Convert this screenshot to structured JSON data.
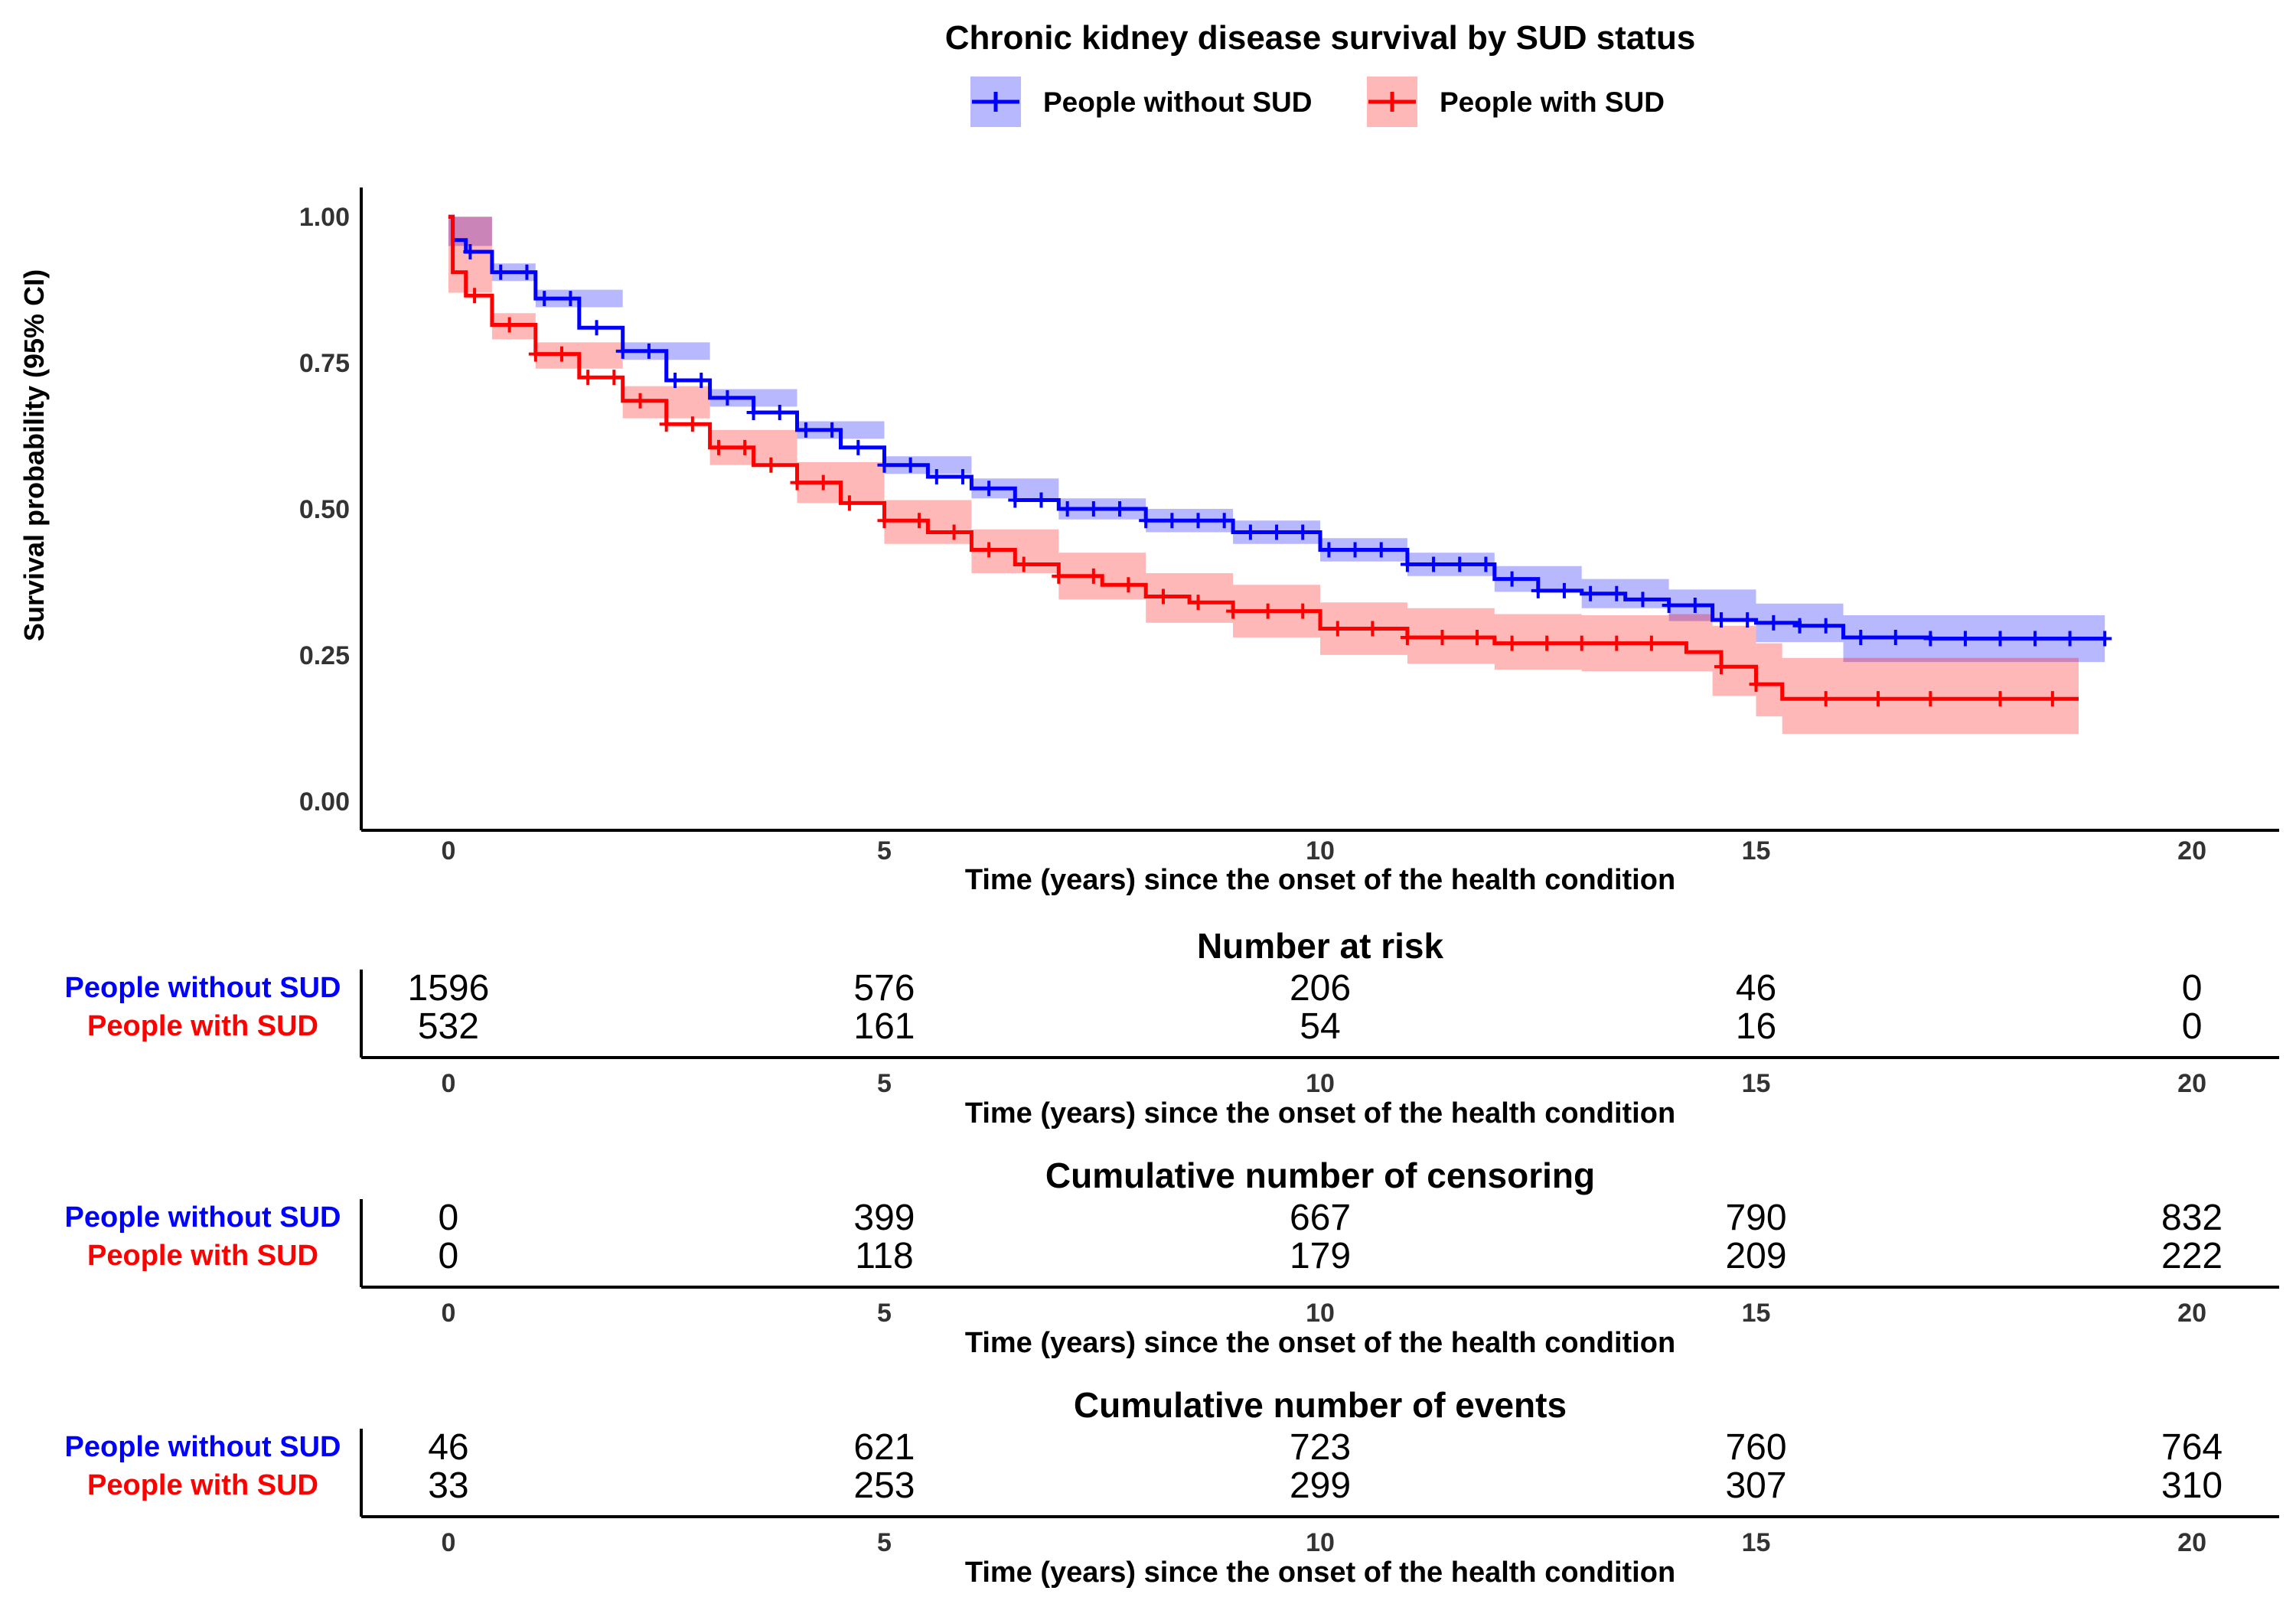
{
  "chart_data": {
    "type": "line",
    "subtype": "kaplan-meier survival curve with risk tables",
    "title": "Chronic kidney disease survival by SUD status",
    "xlabel": "Time (years) since the onset of the health condition",
    "ylabel": "Survival probability (95% CI)",
    "xlim": [
      -1,
      21
    ],
    "ylim": [
      -0.05,
      1.05
    ],
    "xticks": [
      "0",
      "5",
      "10",
      "15",
      "20"
    ],
    "yticks": [
      "0.00",
      "0.25",
      "0.50",
      "0.75",
      "1.00"
    ],
    "legend_position": "top",
    "grid": false,
    "series": [
      {
        "name": "People without SUD",
        "color": "#0000FF",
        "fill": "#0000FF",
        "points": [
          [
            0,
            1.0
          ],
          [
            0.05,
            0.96
          ],
          [
            0.2,
            0.94
          ],
          [
            0.5,
            0.905
          ],
          [
            1,
            0.86
          ],
          [
            1.5,
            0.81
          ],
          [
            2,
            0.77
          ],
          [
            2.5,
            0.72
          ],
          [
            3,
            0.69
          ],
          [
            3.5,
            0.665
          ],
          [
            4,
            0.635
          ],
          [
            4.5,
            0.605
          ],
          [
            5,
            0.575
          ],
          [
            5.5,
            0.555
          ],
          [
            6,
            0.535
          ],
          [
            6.5,
            0.515
          ],
          [
            7,
            0.5
          ],
          [
            8,
            0.48
          ],
          [
            9,
            0.46
          ],
          [
            10,
            0.43
          ],
          [
            11,
            0.405
          ],
          [
            12,
            0.38
          ],
          [
            12.5,
            0.36
          ],
          [
            13,
            0.355
          ],
          [
            13.5,
            0.345
          ],
          [
            14,
            0.335
          ],
          [
            14.5,
            0.31
          ],
          [
            15,
            0.305
          ],
          [
            15.5,
            0.3
          ],
          [
            16,
            0.28
          ],
          [
            17,
            0.278
          ],
          [
            19,
            0.278
          ]
        ],
        "ci_upper": [
          [
            0,
            1.0
          ],
          [
            0.5,
            0.92
          ],
          [
            1,
            0.875
          ],
          [
            2,
            0.785
          ],
          [
            3,
            0.705
          ],
          [
            4,
            0.65
          ],
          [
            5,
            0.59
          ],
          [
            6,
            0.552
          ],
          [
            7,
            0.518
          ],
          [
            8,
            0.5
          ],
          [
            9,
            0.48
          ],
          [
            10,
            0.45
          ],
          [
            11,
            0.425
          ],
          [
            12,
            0.402
          ],
          [
            13,
            0.38
          ],
          [
            14,
            0.362
          ],
          [
            15,
            0.338
          ],
          [
            16,
            0.318
          ],
          [
            17,
            0.318
          ],
          [
            19,
            0.318
          ]
        ],
        "ci_lower": [
          [
            0,
            0.95
          ],
          [
            0.5,
            0.89
          ],
          [
            1,
            0.845
          ],
          [
            2,
            0.755
          ],
          [
            3,
            0.675
          ],
          [
            4,
            0.62
          ],
          [
            5,
            0.56
          ],
          [
            6,
            0.518
          ],
          [
            7,
            0.482
          ],
          [
            8,
            0.46
          ],
          [
            9,
            0.44
          ],
          [
            10,
            0.41
          ],
          [
            11,
            0.385
          ],
          [
            12,
            0.358
          ],
          [
            13,
            0.33
          ],
          [
            14,
            0.308
          ],
          [
            15,
            0.272
          ],
          [
            16,
            0.238
          ],
          [
            17,
            0.238
          ],
          [
            19,
            0.238
          ]
        ],
        "censor_x": [
          0.25,
          0.6,
          0.9,
          1.1,
          1.4,
          1.7,
          2.0,
          2.3,
          2.6,
          2.9,
          3.2,
          3.5,
          3.8,
          4.1,
          4.4,
          4.7,
          5.0,
          5.3,
          5.6,
          5.9,
          6.2,
          6.5,
          6.8,
          7.1,
          7.4,
          7.7,
          8.0,
          8.3,
          8.6,
          8.9,
          9.2,
          9.5,
          9.8,
          10.1,
          10.4,
          10.7,
          11.0,
          11.3,
          11.6,
          11.9,
          12.2,
          12.5,
          12.8,
          13.1,
          13.4,
          13.7,
          14.0,
          14.3,
          14.6,
          14.9,
          15.2,
          15.5,
          15.8,
          16.2,
          16.6,
          17.0,
          17.4,
          17.8,
          18.2,
          18.6,
          19.0
        ],
        "risk": [
          "1596",
          "576",
          "206",
          "46",
          "0"
        ],
        "censoring": [
          "0",
          "399",
          "667",
          "790",
          "832"
        ],
        "events": [
          "46",
          "621",
          "723",
          "760",
          "764"
        ]
      },
      {
        "name": "People with SUD",
        "color": "#FF0000",
        "fill": "#FF0000",
        "points": [
          [
            0,
            1.0
          ],
          [
            0.05,
            0.905
          ],
          [
            0.2,
            0.865
          ],
          [
            0.5,
            0.815
          ],
          [
            1,
            0.765
          ],
          [
            1.5,
            0.725
          ],
          [
            2,
            0.685
          ],
          [
            2.5,
            0.645
          ],
          [
            3,
            0.605
          ],
          [
            3.5,
            0.575
          ],
          [
            4,
            0.545
          ],
          [
            4.5,
            0.51
          ],
          [
            5,
            0.48
          ],
          [
            5.5,
            0.46
          ],
          [
            6,
            0.43
          ],
          [
            6.5,
            0.405
          ],
          [
            7,
            0.385
          ],
          [
            7.5,
            0.37
          ],
          [
            8,
            0.35
          ],
          [
            8.5,
            0.34
          ],
          [
            9,
            0.325
          ],
          [
            10,
            0.295
          ],
          [
            11,
            0.28
          ],
          [
            12,
            0.27
          ],
          [
            13,
            0.27
          ],
          [
            14,
            0.27
          ],
          [
            14.2,
            0.255
          ],
          [
            14.6,
            0.23
          ],
          [
            15,
            0.2
          ],
          [
            15.3,
            0.175
          ],
          [
            16,
            0.175
          ],
          [
            18.7,
            0.175
          ]
        ],
        "ci_upper": [
          [
            0,
            1.0
          ],
          [
            0.5,
            0.835
          ],
          [
            1,
            0.785
          ],
          [
            2,
            0.71
          ],
          [
            3,
            0.635
          ],
          [
            4,
            0.58
          ],
          [
            5,
            0.515
          ],
          [
            6,
            0.465
          ],
          [
            7,
            0.425
          ],
          [
            8,
            0.39
          ],
          [
            9,
            0.37
          ],
          [
            10,
            0.34
          ],
          [
            11,
            0.33
          ],
          [
            12,
            0.32
          ],
          [
            13,
            0.318
          ],
          [
            14,
            0.32
          ],
          [
            14.5,
            0.3
          ],
          [
            15,
            0.27
          ],
          [
            15.3,
            0.245
          ],
          [
            16,
            0.245
          ],
          [
            18.7,
            0.245
          ]
        ],
        "ci_lower": [
          [
            0,
            0.87
          ],
          [
            0.5,
            0.79
          ],
          [
            1,
            0.74
          ],
          [
            2,
            0.655
          ],
          [
            3,
            0.575
          ],
          [
            4,
            0.51
          ],
          [
            5,
            0.44
          ],
          [
            6,
            0.39
          ],
          [
            7,
            0.345
          ],
          [
            8,
            0.305
          ],
          [
            9,
            0.28
          ],
          [
            10,
            0.25
          ],
          [
            11,
            0.235
          ],
          [
            12,
            0.225
          ],
          [
            13,
            0.222
          ],
          [
            14,
            0.222
          ],
          [
            14.5,
            0.18
          ],
          [
            15,
            0.145
          ],
          [
            15.3,
            0.115
          ],
          [
            16,
            0.115
          ],
          [
            18.7,
            0.115
          ]
        ],
        "censor_x": [
          0.3,
          0.7,
          1.0,
          1.3,
          1.6,
          1.9,
          2.2,
          2.5,
          2.8,
          3.1,
          3.4,
          3.7,
          4.0,
          4.3,
          4.6,
          5.0,
          5.4,
          5.8,
          6.2,
          6.6,
          7.0,
          7.4,
          7.8,
          8.2,
          8.6,
          9.0,
          9.4,
          9.8,
          10.2,
          10.6,
          11.0,
          11.4,
          11.8,
          12.2,
          12.6,
          13.0,
          13.4,
          13.8,
          14.6,
          15.0,
          15.8,
          16.4,
          17.0,
          17.8,
          18.4
        ],
        "risk": [
          "532",
          "161",
          "54",
          "16",
          "0"
        ],
        "censoring": [
          "0",
          "118",
          "179",
          "209",
          "222"
        ],
        "events": [
          "33",
          "253",
          "299",
          "307",
          "310"
        ]
      }
    ],
    "tables": [
      {
        "title": "Number at risk",
        "key": "risk"
      },
      {
        "title": "Cumulative number of censoring",
        "key": "censoring"
      },
      {
        "title": "Cumulative number of events",
        "key": "events"
      }
    ],
    "table_times": [
      0,
      5,
      10,
      15,
      20
    ]
  }
}
